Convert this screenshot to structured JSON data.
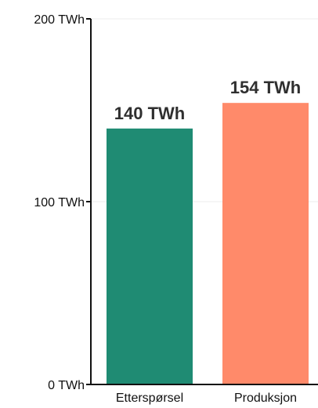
{
  "chart_data": {
    "type": "bar",
    "title": "",
    "xlabel": "",
    "ylabel": "",
    "unit": "TWh",
    "categories": [
      "Etterspørsel",
      "Produksjon"
    ],
    "values": [
      140,
      154
    ],
    "data_labels": [
      "140 TWh",
      "154 TWh"
    ],
    "colors": [
      "#1f8b73",
      "#ff8a6a"
    ],
    "ylim": [
      0,
      200
    ],
    "y_ticks": [
      0,
      100,
      200
    ],
    "y_tick_labels": [
      "0 TWh",
      "100 TWh",
      "200 TWh"
    ],
    "grid": true,
    "legend": "none"
  }
}
